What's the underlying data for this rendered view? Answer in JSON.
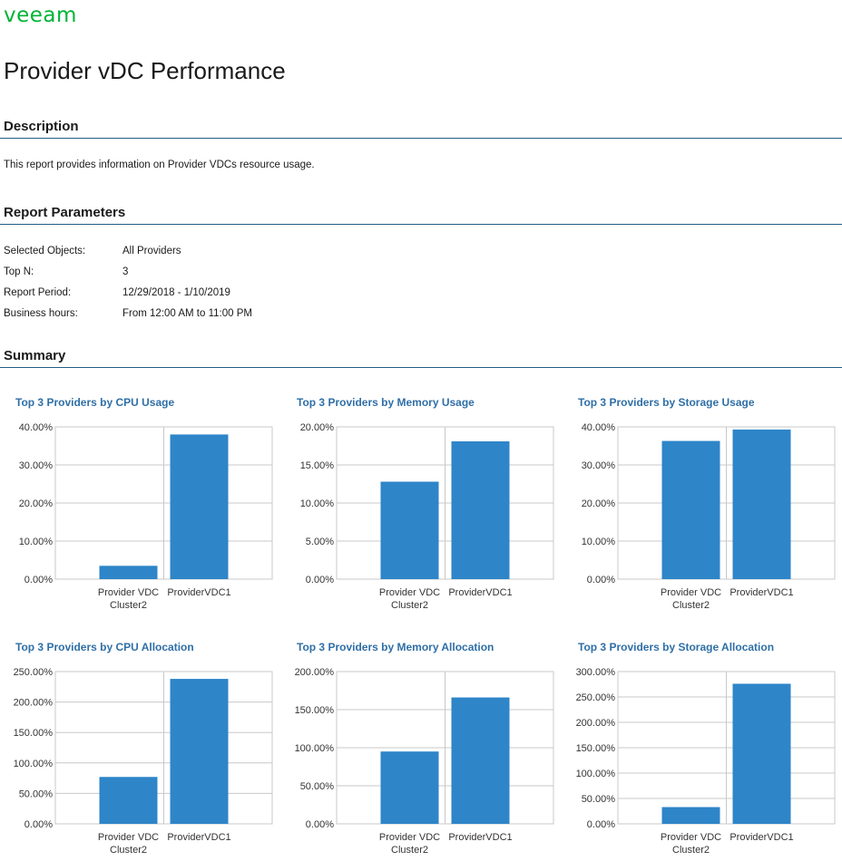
{
  "logo": "veeam",
  "title": "Provider vDC Performance",
  "sections": {
    "description": "Description",
    "parameters": "Report Parameters",
    "summary": "Summary"
  },
  "description_text": "This report provides information on Provider VDCs resource usage.",
  "parameters": [
    {
      "label": "Selected Objects:",
      "value": "All Providers"
    },
    {
      "label": "Top N:",
      "value": "3"
    },
    {
      "label": "Report Period:",
      "value": "12/29/2018 - 1/10/2019"
    },
    {
      "label": "Business hours:",
      "value": "From 12:00 AM to 11:00 PM"
    }
  ],
  "colors": {
    "accent": "#2e85c8",
    "title_blue": "#2f6fa6",
    "logo_green": "#00b336",
    "rule": "#1f5f83"
  },
  "chart_data": [
    {
      "type": "bar",
      "title": "Top 3 Providers by CPU Usage",
      "categories": [
        [
          "Provider VDC",
          "Cluster2"
        ],
        [
          "ProviderVDC1"
        ]
      ],
      "values": [
        3.5,
        38.0
      ],
      "yticks": [
        "0.00%",
        "10.00%",
        "20.00%",
        "30.00%",
        "40.00%"
      ],
      "ylim": [
        0,
        40
      ]
    },
    {
      "type": "bar",
      "title": "Top 3 Providers by Memory Usage",
      "categories": [
        [
          "Provider VDC",
          "Cluster2"
        ],
        [
          "ProviderVDC1"
        ]
      ],
      "values": [
        12.8,
        18.1
      ],
      "yticks": [
        "0.00%",
        "5.00%",
        "10.00%",
        "15.00%",
        "20.00%"
      ],
      "ylim": [
        0,
        20
      ]
    },
    {
      "type": "bar",
      "title": "Top 3 Providers by Storage Usage",
      "categories": [
        [
          "Provider VDC",
          "Cluster2"
        ],
        [
          "ProviderVDC1"
        ]
      ],
      "values": [
        36.3,
        39.3
      ],
      "yticks": [
        "0.00%",
        "10.00%",
        "20.00%",
        "30.00%",
        "40.00%"
      ],
      "ylim": [
        0,
        40
      ]
    },
    {
      "type": "bar",
      "title": "Top 3 Providers by CPU Allocation",
      "categories": [
        [
          "Provider VDC",
          "Cluster2"
        ],
        [
          "ProviderVDC1"
        ]
      ],
      "values": [
        77,
        238
      ],
      "yticks": [
        "0.00%",
        "50.00%",
        "100.00%",
        "150.00%",
        "200.00%",
        "250.00%"
      ],
      "ylim": [
        0,
        250
      ]
    },
    {
      "type": "bar",
      "title": "Top 3 Providers by Memory Allocation",
      "categories": [
        [
          "Provider VDC",
          "Cluster2"
        ],
        [
          "ProviderVDC1"
        ]
      ],
      "values": [
        95,
        166
      ],
      "yticks": [
        "0.00%",
        "50.00%",
        "100.00%",
        "150.00%",
        "200.00%"
      ],
      "ylim": [
        0,
        200
      ]
    },
    {
      "type": "bar",
      "title": "Top 3 Providers by Storage Allocation",
      "categories": [
        [
          "Provider VDC",
          "Cluster2"
        ],
        [
          "ProviderVDC1"
        ]
      ],
      "values": [
        33,
        276
      ],
      "yticks": [
        "0.00%",
        "50.00%",
        "100.00%",
        "150.00%",
        "200.00%",
        "250.00%",
        "300.00%"
      ],
      "ylim": [
        0,
        300
      ]
    }
  ]
}
